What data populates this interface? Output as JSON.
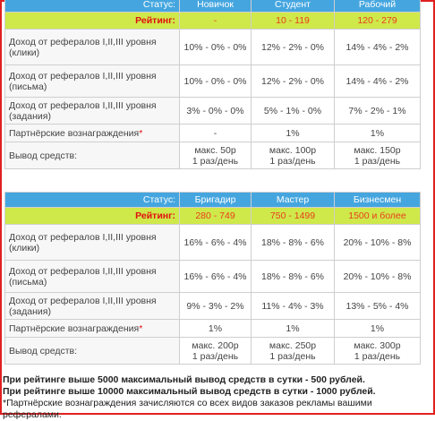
{
  "tables": [
    {
      "header": [
        "Статус:",
        "Новичок",
        "Студент",
        "Рабочий"
      ],
      "rating": [
        "Рейтинг:",
        "-",
        "10 - 119",
        "120 - 279"
      ],
      "rows": [
        {
          "label": [
            "Доход от рефералов I,II,III уровня",
            "(клики)"
          ],
          "cells": [
            [
              "10% - 0% - 0%"
            ],
            [
              "12% - 2% - 0%"
            ],
            [
              "14% - 4% - 2%"
            ]
          ]
        },
        {
          "label": [
            "Доход от рефералов I,II,III уровня",
            "(письма)"
          ],
          "cells": [
            [
              "10% - 0% - 0%"
            ],
            [
              "12% - 2% - 0%"
            ],
            [
              "14% - 4% - 2%"
            ]
          ]
        },
        {
          "label": [
            "Доход от рефералов I,II,III уровня",
            "(задания)"
          ],
          "cells": [
            [
              "3% - 0% - 0%"
            ],
            [
              "5% - 1% - 0%"
            ],
            [
              "7% - 2% - 1%"
            ]
          ]
        },
        {
          "label": [
            "Партнёрские вознаграждения"
          ],
          "mark": "*",
          "cells": [
            [
              "-"
            ],
            [
              "1%"
            ],
            [
              "1%"
            ]
          ]
        },
        {
          "label": [
            "Вывод средств:"
          ],
          "cells": [
            [
              "макс. 50р",
              "1 раз/день"
            ],
            [
              "макс. 100р",
              "1 раз/день"
            ],
            [
              "макс. 150р",
              "1 раз/день"
            ]
          ]
        }
      ]
    },
    {
      "header": [
        "Статус:",
        "Бригадир",
        "Мастер",
        "Бизнесмен"
      ],
      "rating": [
        "Рейтинг:",
        "280 - 749",
        "750 - 1499",
        "1500 и более"
      ],
      "rows": [
        {
          "label": [
            "Доход от рефералов I,II,III уровня",
            "(клики)"
          ],
          "cells": [
            [
              "16% - 6% - 4%"
            ],
            [
              "18% - 8% - 6%"
            ],
            [
              "20% - 10% - 8%"
            ]
          ]
        },
        {
          "label": [
            "Доход от рефералов I,II,III уровня",
            "(письма)"
          ],
          "cells": [
            [
              "16% - 6% - 4%"
            ],
            [
              "18% - 8% - 6%"
            ],
            [
              "20% - 10% - 8%"
            ]
          ]
        },
        {
          "label": [
            "Доход от рефералов I,II,III уровня",
            "(задания)"
          ],
          "cells": [
            [
              "9% - 3% - 2%"
            ],
            [
              "11% - 4% - 3%"
            ],
            [
              "13% - 5% - 4%"
            ]
          ]
        },
        {
          "label": [
            "Партнёрские вознаграждения"
          ],
          "mark": "*",
          "cells": [
            [
              "1%"
            ],
            [
              "1%"
            ],
            [
              "1%"
            ]
          ]
        },
        {
          "label": [
            "Вывод средств:"
          ],
          "cells": [
            [
              "макс. 200р",
              "1 раз/день"
            ],
            [
              "макс. 250р",
              "1 раз/день"
            ],
            [
              "макс. 300р",
              "1 раз/день"
            ]
          ]
        }
      ]
    }
  ],
  "notes": [
    "При рейтинге выше 5000 максимальный вывод средств в сутки - 500 рублей.",
    "При рейтинге выше 10000 максимальный вывод средств в сутки - 1000 рублей.",
    "*Партнёрские вознаграждения зачисляются со всех видов заказов рекламы вашими рефералами."
  ]
}
